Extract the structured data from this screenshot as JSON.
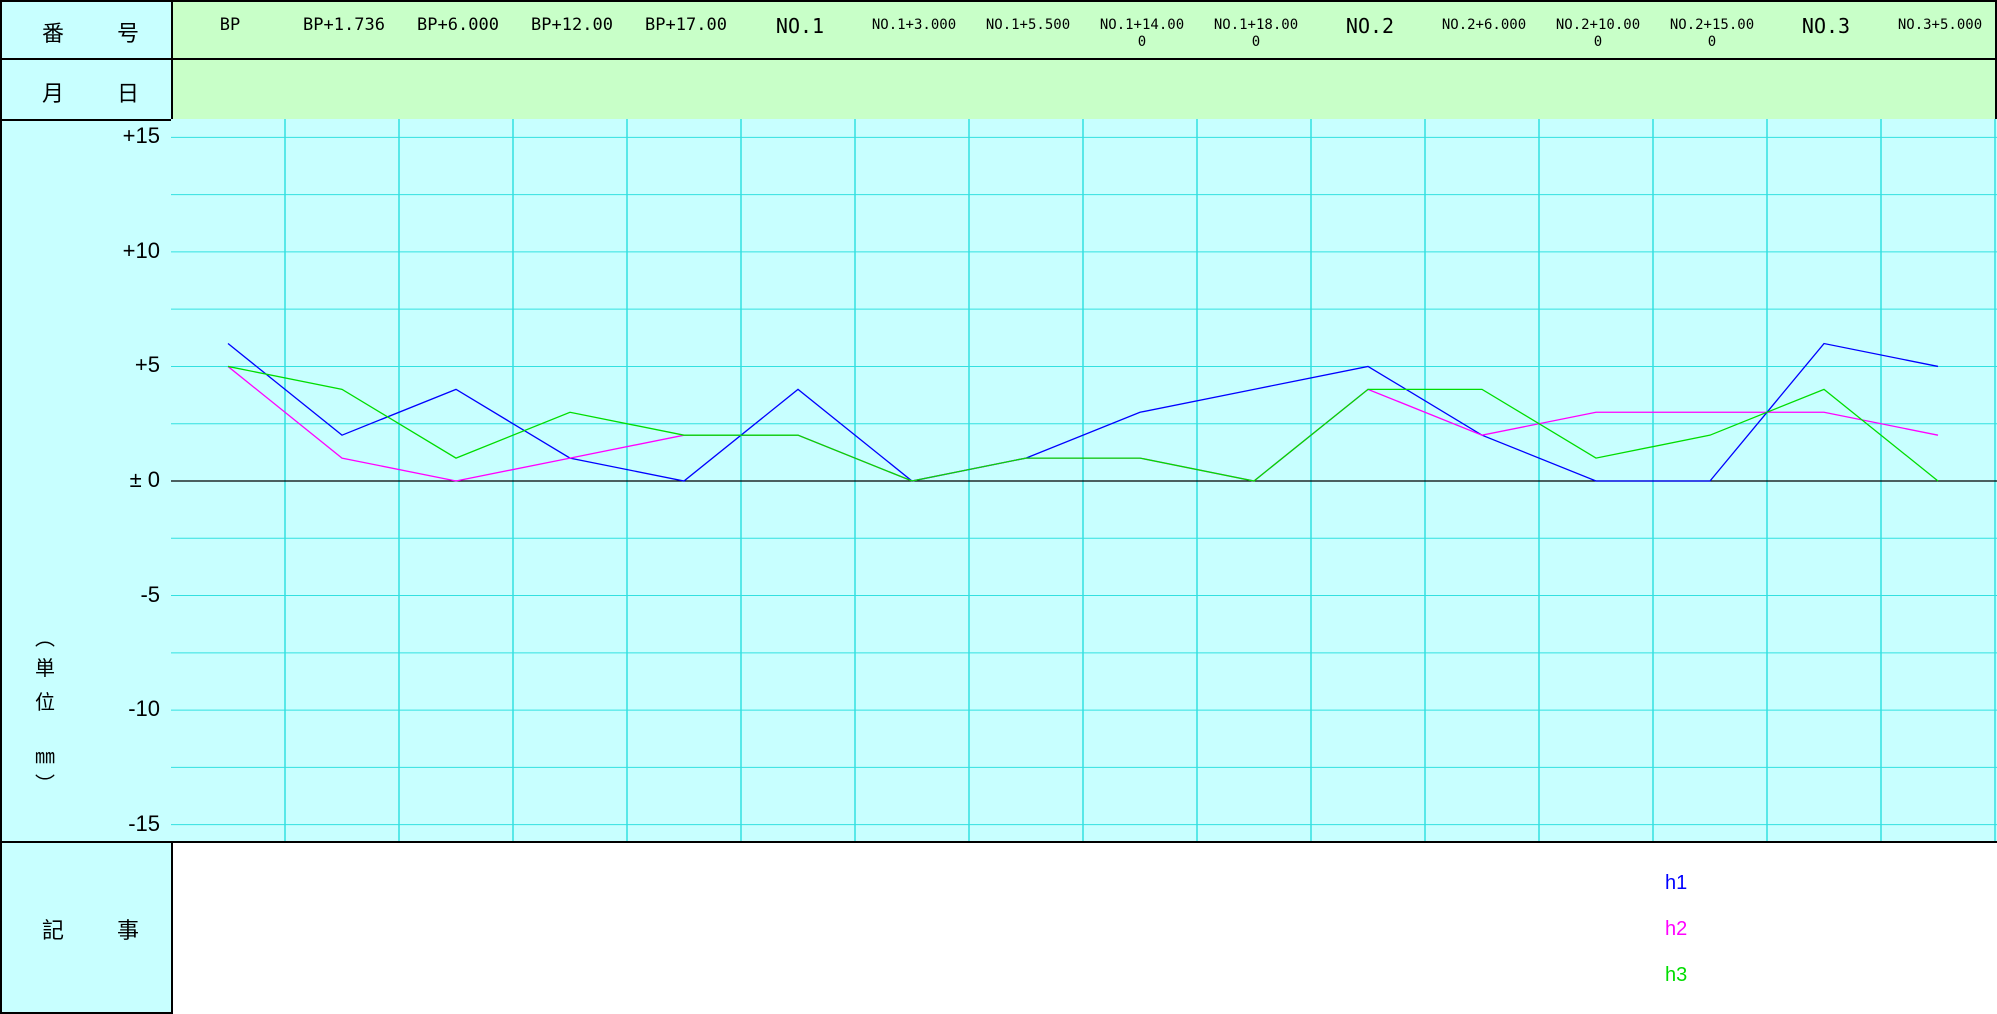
{
  "header": {
    "number_label": [
      "番",
      "号"
    ],
    "date_label": [
      "月",
      "日"
    ],
    "notes_label": [
      "記",
      "事"
    ],
    "unit_label": [
      "︵",
      "単",
      "位",
      "㎜",
      "︶"
    ]
  },
  "stations": [
    {
      "line1": "BP",
      "line2": "",
      "size": "large"
    },
    {
      "line1": "BP+1.736",
      "line2": "",
      "size": "large"
    },
    {
      "line1": "BP+6.000",
      "line2": "",
      "size": "large"
    },
    {
      "line1": "BP+12.00",
      "line2": "",
      "size": "large"
    },
    {
      "line1": "BP+17.00",
      "line2": "",
      "size": "large"
    },
    {
      "line1": "NO.1",
      "line2": "",
      "size": "xlarge"
    },
    {
      "line1": "NO.1+3.000",
      "line2": "",
      "size": "small"
    },
    {
      "line1": "NO.1+5.500",
      "line2": "",
      "size": "small"
    },
    {
      "line1": "NO.1+14.00",
      "line2": "0",
      "size": "small"
    },
    {
      "line1": "NO.1+18.00",
      "line2": "0",
      "size": "small"
    },
    {
      "line1": "NO.2",
      "line2": "",
      "size": "xlarge"
    },
    {
      "line1": "NO.2+6.000",
      "line2": "",
      "size": "small"
    },
    {
      "line1": "NO.2+10.00",
      "line2": "0",
      "size": "small"
    },
    {
      "line1": "NO.2+15.00",
      "line2": "0",
      "size": "small"
    },
    {
      "line1": "NO.3",
      "line2": "",
      "size": "xlarge"
    },
    {
      "line1": "NO.3+5.000",
      "line2": "",
      "size": "small"
    }
  ],
  "chart_data": {
    "type": "line",
    "categories": [
      "BP",
      "BP+1.736",
      "BP+6.000",
      "BP+12.00",
      "BP+17.00",
      "NO.1",
      "NO.1+3.000",
      "NO.1+5.500",
      "NO.1+14.000",
      "NO.1+18.000",
      "NO.2",
      "NO.2+6.000",
      "NO.2+10.000",
      "NO.2+15.000",
      "NO.3",
      "NO.3+5.000"
    ],
    "ytick_labels": [
      "+15",
      "+10",
      "+5",
      "± 0",
      "-5",
      "-10",
      "-15"
    ],
    "ytick_values": [
      15,
      10,
      5,
      0,
      -5,
      -10,
      -15
    ],
    "ylim": [
      -15.8,
      15.8
    ],
    "grid": true,
    "zero_line": true,
    "legend_position": "notes-area-right",
    "series": [
      {
        "name": "h1",
        "color": "#0000ff",
        "values": [
          6,
          2,
          4,
          1,
          0,
          4,
          0,
          1,
          3,
          4,
          5,
          2,
          0,
          0,
          6,
          5
        ]
      },
      {
        "name": "h2",
        "color": "#ff00ff",
        "values": [
          5,
          1,
          0,
          1,
          2,
          2,
          0,
          1,
          1,
          0,
          4,
          2,
          3,
          3,
          3,
          2
        ]
      },
      {
        "name": "h3",
        "color": "#00dd00",
        "values": [
          5,
          4,
          1,
          3,
          2,
          2,
          0,
          1,
          1,
          0,
          4,
          4,
          1,
          2,
          4,
          0
        ]
      }
    ]
  },
  "colors": {
    "header_bg": "#c8ffc8",
    "label_bg": "#c8ffff",
    "plot_bg": "#c8ffff",
    "grid": "#33e0e0"
  }
}
